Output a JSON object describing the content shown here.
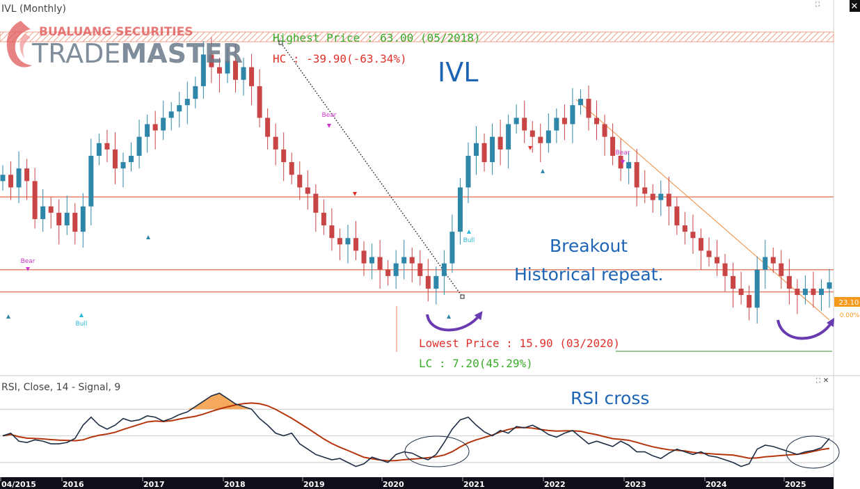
{
  "header": {
    "symbol_label": "IVL (Monthly)",
    "rsi_label": "RSI, Close, 14 - Signal, 9"
  },
  "logo": {
    "line1": "BUALUANG SECURITIES",
    "line2_thin": "TRADE",
    "line2_bold": "MASTER",
    "color_red": "#e05a5a",
    "color_gray": "#6b7a8a"
  },
  "annotations": {
    "highest_price": "Highest Price : 63.00 (05/2018)",
    "hc": "HC : -39.90(-63.34%)",
    "ticker": "IVL",
    "breakout_line1": "Breakout",
    "breakout_line2": "Historical repeat.",
    "lowest_price": "Lowest Price : 15.90 (03/2020)",
    "lc": "LC : 7.20(45.29%)",
    "rsi_cross": "RSI cross",
    "bull_label": "Bull",
    "bear_label": "Bear"
  },
  "price_tag": {
    "value": "23.10",
    "change": "0.00%",
    "color": "#f59a1f"
  },
  "colors": {
    "up": "#2e86a8",
    "down": "#c94444",
    "rsi": "#1d2d44",
    "signal": "#b5350c",
    "hline": "#e8826a",
    "blue_text": "#1e64b4",
    "green_text": "#3aaa2a",
    "red_text": "#e0302a",
    "arrow_purple": "#6a3bb0"
  },
  "chart_data": {
    "type": "candlestick",
    "period": "Monthly",
    "x_axis_labels": [
      "04/2015",
      "2016",
      "2017",
      "2018",
      "2019",
      "2020",
      "2021",
      "2022",
      "2023",
      "2024",
      "2025"
    ],
    "horizontal_levels": [
      39.5,
      28.0,
      24.5,
      62.5,
      63.0
    ],
    "price_panel_ylim": [
      15,
      66
    ],
    "rsi_panel": {
      "ylim": [
        20,
        90
      ],
      "levels": [
        70,
        50,
        30
      ],
      "series": [
        {
          "values": [
            50,
            52,
            46,
            45,
            47,
            46,
            44,
            44,
            45,
            48,
            58,
            64,
            58,
            55,
            58,
            63,
            61,
            62,
            65,
            64,
            61,
            63,
            66,
            68,
            72,
            76,
            80,
            82,
            78,
            74,
            72,
            70,
            63,
            58,
            52,
            50,
            52,
            44,
            40,
            36,
            34,
            32,
            33,
            30,
            27,
            29,
            34,
            32,
            30,
            36,
            38,
            37,
            34,
            32,
            36,
            45,
            55,
            62,
            64,
            58,
            53,
            50,
            54,
            52,
            57,
            56,
            58,
            55,
            51,
            49,
            52,
            54,
            49,
            44,
            46,
            44,
            42,
            46,
            43,
            38,
            38,
            35,
            33,
            37,
            40,
            38,
            36,
            38,
            35,
            34,
            32,
            30,
            27,
            29,
            40,
            43,
            42,
            40,
            38,
            36,
            38,
            39,
            41,
            48
          ]
        }
      ]
    }
  }
}
